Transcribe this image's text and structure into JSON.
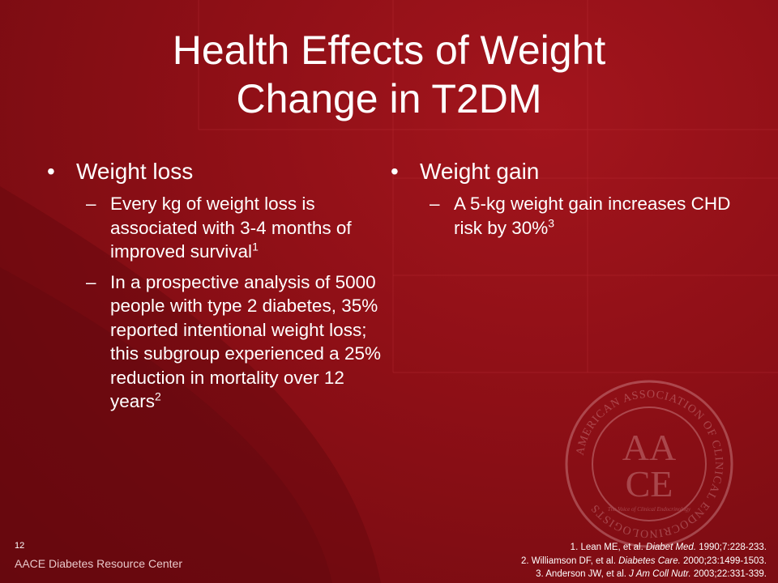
{
  "slide": {
    "title_line1": "Health Effects of Weight",
    "title_line2": "Change in T2DM",
    "number": "12",
    "footer": "AACE Diabetes Resource Center"
  },
  "left": {
    "bullet": "Weight loss",
    "subs": [
      {
        "text": "Every kg of weight loss is associated with 3-4 months of improved survival",
        "sup": "1"
      },
      {
        "text": "In a prospective analysis of 5000 people with type 2 diabetes, 35% reported intentional weight loss; this subgroup experienced a 25% reduction in mortality over 12 years",
        "sup": "2"
      }
    ]
  },
  "right": {
    "bullet": "Weight gain",
    "subs": [
      {
        "text": "A 5-kg weight gain increases CHD risk by 30%",
        "sup": "3"
      }
    ]
  },
  "references": [
    {
      "pre": "1. Lean ME, et al. ",
      "journal": "Diabet Med.",
      "post": " 1990;7:228-233."
    },
    {
      "pre": "2. Williamson DF, et al. ",
      "journal": "Diabetes Care.",
      "post": " 2000;23:1499-1503."
    },
    {
      "pre": "3. Anderson JW, et al. ",
      "journal": "J Am Coll Nutr.",
      "post": " 2003;22:331-339."
    }
  ],
  "seal": {
    "ring_text": "AMERICAN ASSOCIATION OF CLINICAL ENDOCRINOLOGISTS",
    "inner_text": "The Voice of Clinical Endocrinology",
    "monogram_top": "AA",
    "monogram_bottom": "CE"
  },
  "glyphs": {
    "bullet": "•",
    "dash": "–"
  }
}
